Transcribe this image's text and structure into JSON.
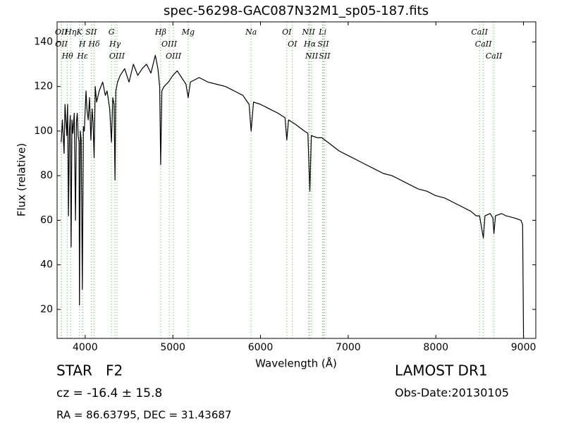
{
  "chart_data": {
    "type": "line",
    "title": "spec-56298-GAC087N32M1_sp05-187.fits",
    "xlabel": "Wavelength (Å)",
    "ylabel": "Flux (relative)",
    "xlim": [
      3680,
      9140
    ],
    "ylim": [
      7,
      149
    ],
    "xticks": [
      4000,
      5000,
      6000,
      7000,
      8000,
      9000
    ],
    "yticks": [
      20,
      40,
      60,
      80,
      100,
      120,
      140
    ],
    "series": [
      {
        "color": "#000000",
        "x": [
          3727,
          3740,
          3760,
          3770,
          3790,
          3800,
          3810,
          3820,
          3830,
          3840,
          3850,
          3860,
          3875,
          3890,
          3900,
          3910,
          3920,
          3930,
          3935,
          3945,
          3955,
          3968,
          3980,
          3990,
          4010,
          4020,
          4035,
          4050,
          4065,
          4080,
          4090,
          4102,
          4115,
          4130,
          4160,
          4200,
          4230,
          4250,
          4280,
          4300,
          4315,
          4330,
          4340,
          4350,
          4370,
          4400,
          4450,
          4500,
          4550,
          4600,
          4650,
          4700,
          4750,
          4800,
          4830,
          4850,
          4861,
          4875,
          4900,
          4950,
          5000,
          5050,
          5100,
          5150,
          5175,
          5200,
          5300,
          5400,
          5500,
          5600,
          5700,
          5800,
          5870,
          5893,
          5920,
          6000,
          6100,
          6200,
          6280,
          6300,
          6320,
          6400,
          6500,
          6540,
          6563,
          6580,
          6650,
          6700,
          6800,
          6900,
          7000,
          7100,
          7200,
          7300,
          7400,
          7500,
          7600,
          7700,
          7800,
          7900,
          8000,
          8100,
          8200,
          8300,
          8400,
          8460,
          8498,
          8520,
          8542,
          8560,
          8620,
          8650,
          8662,
          8680,
          8750,
          8800,
          8900,
          8970,
          8990,
          9000
        ],
        "values": [
          95,
          105,
          90,
          112,
          98,
          112,
          62,
          100,
          107,
          48,
          105,
          99,
          108,
          60,
          104,
          108,
          98,
          95,
          22,
          100,
          96,
          29,
          102,
          100,
          118,
          110,
          105,
          115,
          96,
          110,
          104,
          88,
          120,
          113,
          118,
          122,
          116,
          118,
          110,
          95,
          115,
          112,
          78,
          118,
          122,
          125,
          128,
          122,
          130,
          125,
          128,
          130,
          126,
          134,
          128,
          120,
          85,
          118,
          120,
          122,
          125,
          127,
          124,
          121,
          115,
          122,
          124,
          122,
          121,
          120,
          118,
          116,
          112,
          100,
          113,
          112,
          110,
          108,
          106,
          96,
          105,
          103,
          100,
          99,
          73,
          98,
          97,
          97,
          94,
          91,
          89,
          87,
          85,
          83,
          81,
          80,
          78,
          76,
          74,
          73,
          71,
          70,
          68,
          66,
          64,
          62,
          62,
          57,
          52,
          62,
          63,
          61,
          54,
          62,
          63,
          62,
          61,
          60,
          58,
          7
        ]
      }
    ],
    "annotations": [
      {
        "text": "OII",
        "x": 3727
      },
      {
        "text": "OII",
        "x": 3729
      },
      {
        "text": "Hθ",
        "x": 3798
      },
      {
        "text": "Hη",
        "x": 3835
      },
      {
        "text": "K",
        "x": 3934
      },
      {
        "text": "H",
        "x": 3968
      },
      {
        "text": "Hε",
        "x": 3970
      },
      {
        "text": "SII",
        "x": 4069
      },
      {
        "text": "Hδ",
        "x": 4102
      },
      {
        "text": "G",
        "x": 4300
      },
      {
        "text": "Hγ",
        "x": 4340
      },
      {
        "text": "OIII",
        "x": 4363
      },
      {
        "text": "Hβ",
        "x": 4861
      },
      {
        "text": "OIII",
        "x": 4959
      },
      {
        "text": "OIII",
        "x": 5007
      },
      {
        "text": "Mg",
        "x": 5175
      },
      {
        "text": "Na",
        "x": 5893
      },
      {
        "text": "OI",
        "x": 6300
      },
      {
        "text": "OI",
        "x": 6364
      },
      {
        "text": "NII",
        "x": 6548
      },
      {
        "text": "Hα",
        "x": 6563
      },
      {
        "text": "NII",
        "x": 6583
      },
      {
        "text": "Li",
        "x": 6708
      },
      {
        "text": "SII",
        "x": 6716
      },
      {
        "text": "SII",
        "x": 6731
      },
      {
        "text": "CaII",
        "x": 8498
      },
      {
        "text": "CaII",
        "x": 8542
      },
      {
        "text": "CaII",
        "x": 8662
      }
    ],
    "class": "STAR   F2",
    "survey": "LAMOST DR1",
    "cz": "cz = -16.4 ± 15.8",
    "obsdate": "Obs-Date:20130105",
    "coords": "RA = 86.63795, DEC = 31.43687"
  }
}
